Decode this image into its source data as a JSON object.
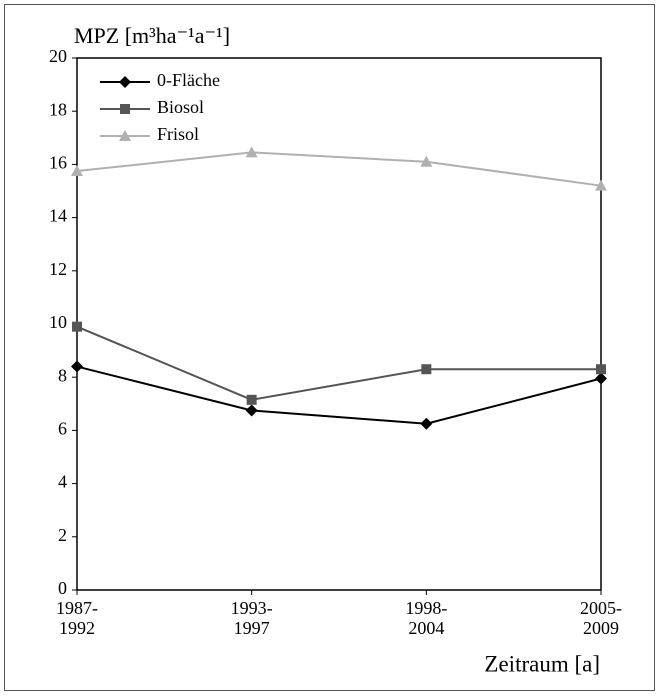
{
  "chart_data": {
    "type": "line",
    "y_label": "MPZ [m³ha⁻¹a⁻¹]",
    "x_label": "Zeitraum [a]",
    "categories": [
      "1987-\n1992",
      "1993-\n1997",
      "1998-\n2004",
      "2005-\n2009"
    ],
    "series": [
      {
        "name": "0-Fläche",
        "color": "#000000",
        "marker": "diamond",
        "values": [
          8.4,
          6.75,
          6.25,
          7.95
        ]
      },
      {
        "name": "Biosol",
        "color": "#555555",
        "marker": "square",
        "values": [
          9.9,
          7.15,
          8.3,
          8.3
        ]
      },
      {
        "name": "Frisol",
        "color": "#b0b0b0",
        "marker": "triangle",
        "values": [
          15.75,
          16.45,
          16.1,
          15.2
        ]
      }
    ],
    "ylim": [
      0,
      20
    ],
    "yticks": [
      0,
      2,
      4,
      6,
      8,
      10,
      12,
      14,
      16,
      18,
      20
    ],
    "grid": false,
    "legend": "top-left"
  }
}
